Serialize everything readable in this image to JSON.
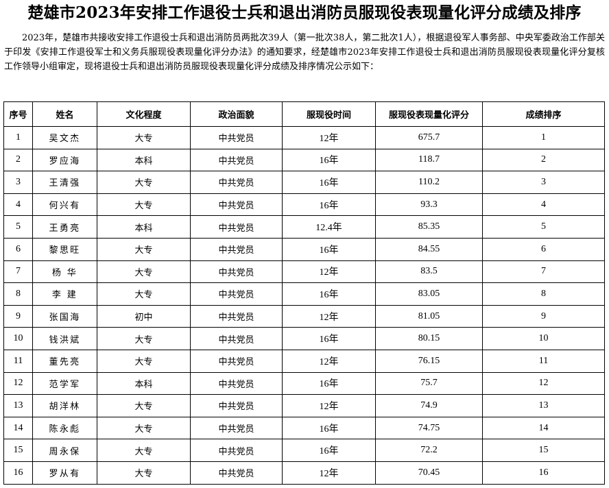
{
  "document": {
    "title": "楚雄市2023年安排工作退役士兵和退出消防员服现役表现量化评分成绩及排序",
    "intro": "2023年，楚雄市共接收安排工作退役士兵和退出消防员两批次39人（第一批次38人，第二批次1人），根据退役军人事务部、中央军委政治工作部关于印发《安排工作退役军士和义务兵服现役表现量化评分办法》的通知要求，经楚雄市2023年安排工作退役士兵和退出消防员服现役表现量化评分复核工作领导小组审定，现将退役士兵和退出消防员服现役表现量化评分成绩及排序情况公示如下："
  },
  "table": {
    "headers": [
      "序号",
      "姓名",
      "文化程度",
      "政治面貌",
      "服现役时间",
      "服现役表现量化评分",
      "成绩排序"
    ],
    "rows": [
      [
        "1",
        "吴文杰",
        "大专",
        "中共党员",
        "12年",
        "675.7",
        "1"
      ],
      [
        "2",
        "罗应海",
        "本科",
        "中共党员",
        "16年",
        "118.7",
        "2"
      ],
      [
        "3",
        "王清强",
        "大专",
        "中共党员",
        "16年",
        "110.2",
        "3"
      ],
      [
        "4",
        "何兴有",
        "大专",
        "中共党员",
        "16年",
        "93.3",
        "4"
      ],
      [
        "5",
        "王勇亮",
        "本科",
        "中共党员",
        "12.4年",
        "85.35",
        "5"
      ],
      [
        "6",
        "黎思旺",
        "大专",
        "中共党员",
        "16年",
        "84.55",
        "6"
      ],
      [
        "7",
        "杨 华",
        "大专",
        "中共党员",
        "12年",
        "83.5",
        "7"
      ],
      [
        "8",
        "李 建",
        "大专",
        "中共党员",
        "16年",
        "83.05",
        "8"
      ],
      [
        "9",
        "张国海",
        "初中",
        "中共党员",
        "12年",
        "81.05",
        "9"
      ],
      [
        "10",
        "钱洪斌",
        "大专",
        "中共党员",
        "16年",
        "80.15",
        "10"
      ],
      [
        "11",
        "董先亮",
        "大专",
        "中共党员",
        "12年",
        "76.15",
        "11"
      ],
      [
        "12",
        "范学军",
        "本科",
        "中共党员",
        "16年",
        "75.7",
        "12"
      ],
      [
        "13",
        "胡洋林",
        "大专",
        "中共党员",
        "12年",
        "74.9",
        "13"
      ],
      [
        "14",
        "陈永彪",
        "大专",
        "中共党员",
        "16年",
        "74.75",
        "14"
      ],
      [
        "15",
        "周永保",
        "大专",
        "中共党员",
        "16年",
        "72.2",
        "15"
      ],
      [
        "16",
        "罗从有",
        "大专",
        "中共党员",
        "12年",
        "70.45",
        "16"
      ]
    ]
  }
}
